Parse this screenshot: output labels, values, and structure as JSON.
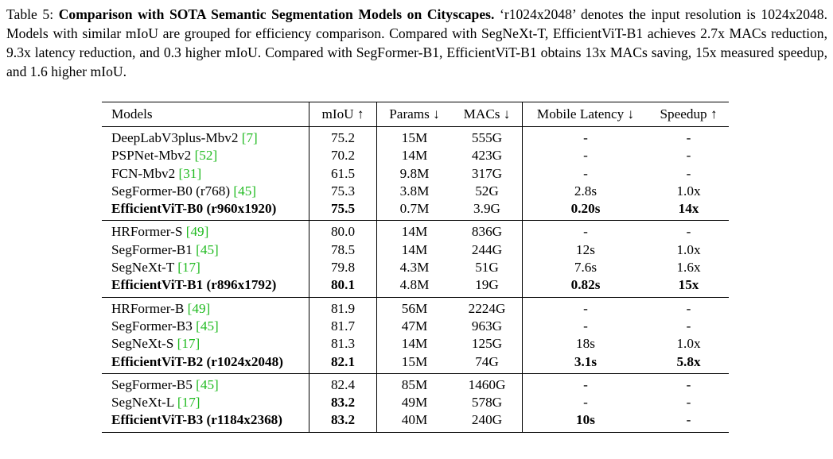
{
  "caption": {
    "label": "Table 5: ",
    "title": "Comparison with SOTA Semantic Segmentation Models on Cityscapes.",
    "body": " ‘r1024x2048’ denotes the input resolution is 1024x2048. Models with similar mIoU are grouped for efficiency comparison. Compared with SegNeXt-T, EfficientViT-B1 achieves 2.7x MACs reduction, 9.3x latency reduction, and 0.3 higher mIoU. Compared with SegFormer-B1, EfficientViT-B1 obtains 13x MACs saving, 15x measured speedup, and 1.6 higher mIoU."
  },
  "table": {
    "headers": {
      "model": "Models",
      "miou": "mIoU ↑",
      "params": "Params ↓",
      "macs": "MACs ↓",
      "latency": "Mobile Latency ↓",
      "speedup": "Speedup ↑"
    },
    "groups": [
      [
        {
          "name": "DeepLabV3plus-Mbv2 ",
          "cite": "[7]",
          "miou": "75.2",
          "params": "15M",
          "macs": "555G",
          "latency": "-",
          "speedup": "-",
          "bold_name": false,
          "bold_miou": false,
          "bold_lat": false,
          "bold_speed": false
        },
        {
          "name": "PSPNet-Mbv2 ",
          "cite": "[52]",
          "miou": "70.2",
          "params": "14M",
          "macs": "423G",
          "latency": "-",
          "speedup": "-",
          "bold_name": false,
          "bold_miou": false,
          "bold_lat": false,
          "bold_speed": false
        },
        {
          "name": "FCN-Mbv2 ",
          "cite": "[31]",
          "miou": "61.5",
          "params": "9.8M",
          "macs": "317G",
          "latency": "-",
          "speedup": "-",
          "bold_name": false,
          "bold_miou": false,
          "bold_lat": false,
          "bold_speed": false
        },
        {
          "name": "SegFormer-B0 (r768) ",
          "cite": "[45]",
          "miou": "75.3",
          "params": "3.8M",
          "macs": "52G",
          "latency": "2.8s",
          "speedup": "1.0x",
          "bold_name": false,
          "bold_miou": false,
          "bold_lat": false,
          "bold_speed": false
        },
        {
          "name": "EfficientViT-B0 (r960x1920)",
          "cite": "",
          "miou": "75.5",
          "params": "0.7M",
          "macs": "3.9G",
          "latency": "0.20s",
          "speedup": "14x",
          "bold_name": true,
          "bold_miou": true,
          "bold_lat": true,
          "bold_speed": true
        }
      ],
      [
        {
          "name": "HRFormer-S ",
          "cite": "[49]",
          "miou": "80.0",
          "params": "14M",
          "macs": "836G",
          "latency": "-",
          "speedup": "-",
          "bold_name": false,
          "bold_miou": false,
          "bold_lat": false,
          "bold_speed": false
        },
        {
          "name": "SegFormer-B1 ",
          "cite": "[45]",
          "miou": "78.5",
          "params": "14M",
          "macs": "244G",
          "latency": "12s",
          "speedup": "1.0x",
          "bold_name": false,
          "bold_miou": false,
          "bold_lat": false,
          "bold_speed": false
        },
        {
          "name": "SegNeXt-T ",
          "cite": "[17]",
          "miou": "79.8",
          "params": "4.3M",
          "macs": "51G",
          "latency": "7.6s",
          "speedup": "1.6x",
          "bold_name": false,
          "bold_miou": false,
          "bold_lat": false,
          "bold_speed": false
        },
        {
          "name": "EfficientViT-B1 (r896x1792)",
          "cite": "",
          "miou": "80.1",
          "params": "4.8M",
          "macs": "19G",
          "latency": "0.82s",
          "speedup": "15x",
          "bold_name": true,
          "bold_miou": true,
          "bold_lat": true,
          "bold_speed": true
        }
      ],
      [
        {
          "name": "HRFormer-B ",
          "cite": "[49]",
          "miou": "81.9",
          "params": "56M",
          "macs": "2224G",
          "latency": "-",
          "speedup": "-",
          "bold_name": false,
          "bold_miou": false,
          "bold_lat": false,
          "bold_speed": false
        },
        {
          "name": "SegFormer-B3 ",
          "cite": "[45]",
          "miou": "81.7",
          "params": "47M",
          "macs": "963G",
          "latency": "-",
          "speedup": "-",
          "bold_name": false,
          "bold_miou": false,
          "bold_lat": false,
          "bold_speed": false
        },
        {
          "name": "SegNeXt-S ",
          "cite": "[17]",
          "miou": "81.3",
          "params": "14M",
          "macs": "125G",
          "latency": "18s",
          "speedup": "1.0x",
          "bold_name": false,
          "bold_miou": false,
          "bold_lat": false,
          "bold_speed": false
        },
        {
          "name": "EfficientViT-B2 (r1024x2048)",
          "cite": "",
          "miou": "82.1",
          "params": "15M",
          "macs": "74G",
          "latency": "3.1s",
          "speedup": "5.8x",
          "bold_name": true,
          "bold_miou": true,
          "bold_lat": true,
          "bold_speed": true
        }
      ],
      [
        {
          "name": "SegFormer-B5 ",
          "cite": "[45]",
          "miou": "82.4",
          "params": "85M",
          "macs": "1460G",
          "latency": "-",
          "speedup": "-",
          "bold_name": false,
          "bold_miou": false,
          "bold_lat": false,
          "bold_speed": false
        },
        {
          "name": "SegNeXt-L ",
          "cite": "[17]",
          "miou": "83.2",
          "params": "49M",
          "macs": "578G",
          "latency": "-",
          "speedup": "-",
          "bold_name": false,
          "bold_miou": true,
          "bold_lat": false,
          "bold_speed": false
        },
        {
          "name": "EfficientViT-B3 (r1184x2368)",
          "cite": "",
          "miou": "83.2",
          "params": "40M",
          "macs": "240G",
          "latency": "10s",
          "speedup": "-",
          "bold_name": true,
          "bold_miou": true,
          "bold_lat": true,
          "bold_speed": false
        }
      ]
    ]
  }
}
